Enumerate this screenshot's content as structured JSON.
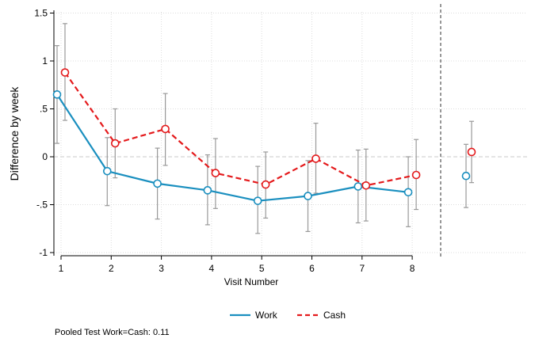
{
  "chart_data": {
    "type": "line",
    "ylabel": "Difference by week",
    "xlabel": "Visit Number",
    "x_ticks": [
      1,
      2,
      3,
      4,
      5,
      6,
      7,
      8
    ],
    "y_ticks": [
      -1,
      -0.5,
      0,
      0.5,
      1,
      1.5
    ],
    "y_tick_labels": [
      "-1",
      "-.5",
      "0",
      ".5",
      "1",
      "1.5"
    ],
    "ylim": [
      -1.05,
      1.5
    ],
    "grid": true,
    "legend": "bottom-center",
    "series": [
      {
        "name": "Work",
        "color": "#1a8fbf",
        "style": "solid",
        "x": [
          1,
          2,
          3,
          4,
          5,
          6,
          7,
          8
        ],
        "y": [
          0.65,
          -0.15,
          -0.28,
          -0.35,
          -0.46,
          -0.41,
          -0.31,
          -0.37
        ],
        "ci_low": [
          0.14,
          -0.51,
          -0.65,
          -0.71,
          -0.8,
          -0.78,
          -0.69,
          -0.73
        ],
        "ci_high": [
          1.16,
          0.2,
          0.09,
          0.02,
          -0.1,
          -0.04,
          0.07,
          0.0
        ],
        "pooled": {
          "y": -0.2,
          "ci_low": -0.53,
          "ci_high": 0.13
        }
      },
      {
        "name": "Cash",
        "color": "#e41a1c",
        "style": "dashed",
        "x": [
          1,
          2,
          3,
          4,
          5,
          6,
          7,
          8
        ],
        "y": [
          0.88,
          0.14,
          0.29,
          -0.17,
          -0.29,
          -0.02,
          -0.3,
          -0.19
        ],
        "ci_low": [
          0.38,
          -0.22,
          -0.09,
          -0.54,
          -0.64,
          -0.38,
          -0.67,
          -0.55
        ],
        "ci_high": [
          1.39,
          0.5,
          0.66,
          0.19,
          0.05,
          0.35,
          0.08,
          0.18
        ],
        "pooled": {
          "y": 0.05,
          "ci_low": -0.27,
          "ci_high": 0.37
        }
      }
    ],
    "note": "Pooled Test Work=Cash: 0.11"
  }
}
